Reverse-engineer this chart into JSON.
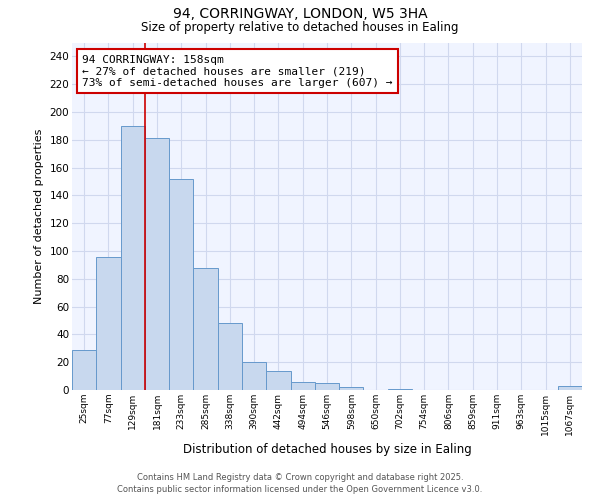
{
  "title": "94, CORRINGWAY, LONDON, W5 3HA",
  "subtitle": "Size of property relative to detached houses in Ealing",
  "xlabel": "Distribution of detached houses by size in Ealing",
  "ylabel": "Number of detached properties",
  "bar_color": "#c8d8ee",
  "bar_edge_color": "#6699cc",
  "background_color": "#ffffff",
  "plot_bg_color": "#f0f4ff",
  "grid_color": "#d0d8ee",
  "categories": [
    "25sqm",
    "77sqm",
    "129sqm",
    "181sqm",
    "233sqm",
    "285sqm",
    "338sqm",
    "390sqm",
    "442sqm",
    "494sqm",
    "546sqm",
    "598sqm",
    "650sqm",
    "702sqm",
    "754sqm",
    "806sqm",
    "859sqm",
    "911sqm",
    "963sqm",
    "1015sqm",
    "1067sqm"
  ],
  "values": [
    29,
    96,
    190,
    181,
    152,
    88,
    48,
    20,
    14,
    6,
    5,
    2,
    0,
    1,
    0,
    0,
    0,
    0,
    0,
    0,
    3
  ],
  "ylim": [
    0,
    250
  ],
  "yticks": [
    0,
    20,
    40,
    60,
    80,
    100,
    120,
    140,
    160,
    180,
    200,
    220,
    240
  ],
  "vline_after_index": 2,
  "vline_color": "#cc0000",
  "annotation_text": "94 CORRINGWAY: 158sqm\n← 27% of detached houses are smaller (219)\n73% of semi-detached houses are larger (607) →",
  "annotation_box_color": "#cc0000",
  "footer_line1": "Contains HM Land Registry data © Crown copyright and database right 2025.",
  "footer_line2": "Contains public sector information licensed under the Open Government Licence v3.0."
}
